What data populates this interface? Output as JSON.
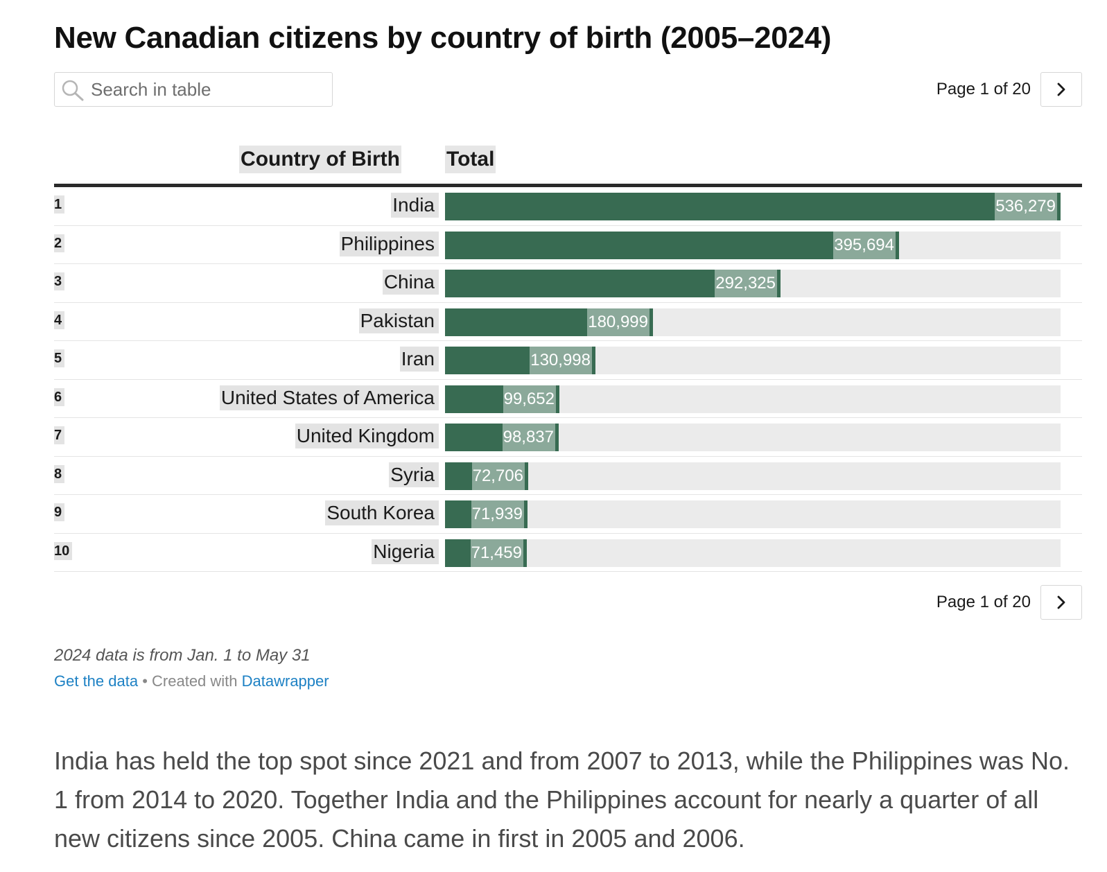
{
  "title": "New Canadian citizens by country of birth (2005–2024)",
  "search": {
    "placeholder": "Search in table",
    "value": ""
  },
  "pagination": {
    "label": "Page 1 of 20",
    "next_icon": "chevron-right-icon"
  },
  "table": {
    "columns": {
      "country": "Country of Birth",
      "total": "Total"
    },
    "max_value": 536279,
    "rows": [
      {
        "rank": "1",
        "country": "India",
        "total": 536279,
        "total_label": "536,279"
      },
      {
        "rank": "2",
        "country": "Philippines",
        "total": 395694,
        "total_label": "395,694"
      },
      {
        "rank": "3",
        "country": "China",
        "total": 292325,
        "total_label": "292,325"
      },
      {
        "rank": "4",
        "country": "Pakistan",
        "total": 180999,
        "total_label": "180,999"
      },
      {
        "rank": "5",
        "country": "Iran",
        "total": 130998,
        "total_label": "130,998"
      },
      {
        "rank": "6",
        "country": "United States of America",
        "total": 99652,
        "total_label": "99,652"
      },
      {
        "rank": "7",
        "country": "United Kingdom",
        "total": 98837,
        "total_label": "98,837"
      },
      {
        "rank": "8",
        "country": "Syria",
        "total": 72706,
        "total_label": "72,706"
      },
      {
        "rank": "9",
        "country": "South Korea",
        "total": 71939,
        "total_label": "71,939"
      },
      {
        "rank": "10",
        "country": "Nigeria",
        "total": 71459,
        "total_label": "71,459"
      }
    ]
  },
  "notes": "2024 data is from Jan. 1 to May 31",
  "credit": {
    "get_data": "Get the data",
    "separator": " • Created with ",
    "tool": "Datawrapper"
  },
  "paragraph": "India has held the top spot since 2021 and from 2007 to 2013, while the Philippines was No. 1 from 2014 to 2020. Together India and the Philippines account for nearly a quarter of all new citizens since 2005. China came in first in 2005 and 2006.",
  "colors": {
    "bar": "#386b52",
    "bar_track": "#ebebeb",
    "link": "#1d81c4"
  }
}
